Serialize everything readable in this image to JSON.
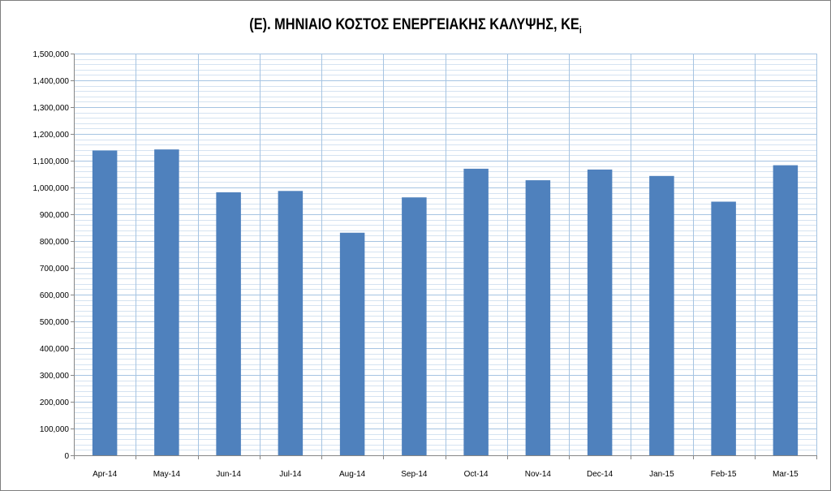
{
  "chart_data": {
    "type": "bar",
    "title": "(Ε). ΜΗΝΙΑΙΟ ΚΟΣΤΟΣ ΕΝΕΡΓΕΙΑΚΗΣ ΚΑΛΥΨΗΣ, ΚΕ",
    "title_subscript": "i",
    "categories": [
      "Apr-14",
      "May-14",
      "Jun-14",
      "Jul-14",
      "Aug-14",
      "Sep-14",
      "Oct-14",
      "Nov-14",
      "Dec-14",
      "Jan-15",
      "Feb-15",
      "Mar-15"
    ],
    "values": [
      1138000,
      1142000,
      982000,
      987000,
      831000,
      963000,
      1070000,
      1027000,
      1067000,
      1043000,
      947000,
      1083000
    ],
    "ylim": [
      0,
      1500000
    ],
    "yticks": [
      0,
      100000,
      200000,
      300000,
      400000,
      500000,
      600000,
      700000,
      800000,
      900000,
      1000000,
      1100000,
      1200000,
      1300000,
      1400000,
      1500000
    ],
    "ytick_labels": [
      "0",
      "100,000",
      "200,000",
      "300,000",
      "400,000",
      "500,000",
      "600,000",
      "700,000",
      "800,000",
      "900,000",
      "1,000,000",
      "1,100,000",
      "1,200,000",
      "1,300,000",
      "1,400,000",
      "1,500,000"
    ],
    "minor_step": 20000,
    "xlabel": "",
    "ylabel": "",
    "grid": true,
    "legend": "none",
    "colors": {
      "bar": "#4f81bd",
      "major_grid": "#a6c4e2",
      "minor_grid": "#d5e3f1",
      "axis": "#868686"
    }
  }
}
